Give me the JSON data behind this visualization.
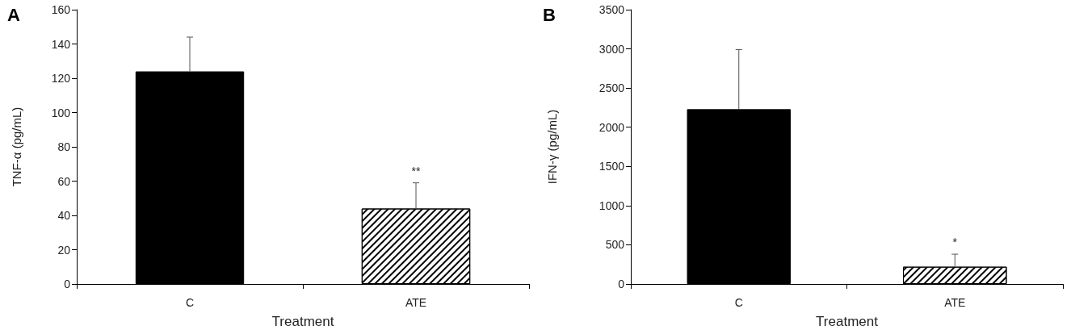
{
  "chart_data": [
    {
      "type": "bar",
      "title": "A",
      "xlabel": "Treatment",
      "ylabel": "TNF-α (pg/mL)",
      "categories": [
        "C",
        "ATE"
      ],
      "values": [
        124,
        44
      ],
      "colors": [
        "#000000",
        "#ffffff"
      ],
      "errors": [
        [
          124,
          144
        ],
        [
          44,
          59
        ]
      ],
      "ylim": [
        0,
        160
      ],
      "yticks": [
        0,
        20,
        40,
        60,
        80,
        100,
        120,
        140,
        160
      ],
      "grid": false,
      "annotations": [
        "**"
      ]
    },
    {
      "type": "bar",
      "title": "B",
      "xlabel": "Treatment",
      "ylabel": "IFN-γ (pg/mL)",
      "categories": [
        "C",
        "ATE"
      ],
      "values": [
        2230,
        220
      ],
      "colors": [
        "#000000",
        "#ffffff"
      ],
      "errors": [
        [
          2230,
          2990
        ],
        [
          220,
          380
        ]
      ],
      "ylim": [
        0,
        3500
      ],
      "yticks": [
        0,
        500,
        1000,
        1500,
        2000,
        2500,
        3000,
        3500
      ],
      "grid": false,
      "annotations": [
        "*"
      ]
    }
  ]
}
